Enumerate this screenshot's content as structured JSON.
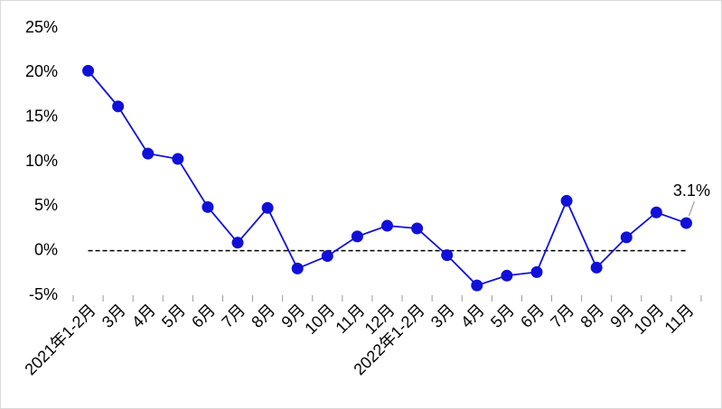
{
  "chart_data": {
    "type": "line",
    "categories": [
      "2021年1-2月",
      "3月",
      "4月",
      "5月",
      "6月",
      "7月",
      "8月",
      "9月",
      "10月",
      "11月",
      "12月",
      "2022年1-2月",
      "3月",
      "4月",
      "5月",
      "6月",
      "7月",
      "8月",
      "9月",
      "10月",
      "11月"
    ],
    "series": [
      {
        "color": "#1010d8",
        "values": [
          20.2,
          16.2,
          10.9,
          10.3,
          4.9,
          0.9,
          4.8,
          -2.0,
          -0.6,
          1.6,
          2.8,
          2.5,
          -0.5,
          -3.9,
          -2.8,
          -2.4,
          5.6,
          -1.9,
          1.5,
          4.3,
          3.1
        ],
        "value_labels": [
          null,
          null,
          null,
          null,
          null,
          null,
          null,
          null,
          null,
          null,
          null,
          null,
          null,
          null,
          null,
          null,
          null,
          null,
          null,
          null,
          "3.1%"
        ]
      }
    ],
    "ylim": [
      -5,
      25
    ],
    "yticks": [
      {
        "value": -5,
        "label": "-5%"
      },
      {
        "value": 0,
        "label": "0%"
      },
      {
        "value": 5,
        "label": "5%"
      },
      {
        "value": 10,
        "label": "10%"
      },
      {
        "value": 15,
        "label": "15%"
      },
      {
        "value": 20,
        "label": "20%"
      },
      {
        "value": 25,
        "label": "25%"
      }
    ],
    "zero_line": true
  }
}
